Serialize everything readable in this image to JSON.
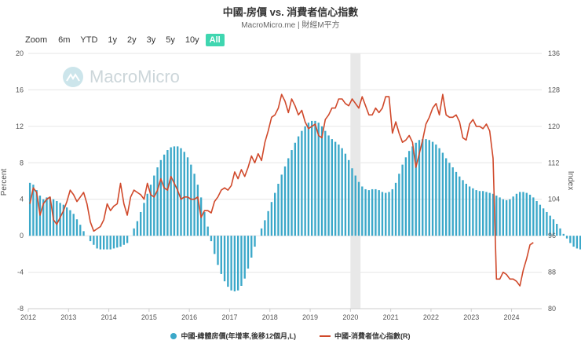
{
  "header": {
    "title": "中國-房價 vs. 消費者信心指數",
    "subtitle": "MacroMicro.me | 財經M平方"
  },
  "zoom": {
    "label": "Zoom",
    "options": [
      "6m",
      "YTD",
      "1y",
      "2y",
      "3y",
      "5y",
      "10y",
      "All"
    ],
    "active": "All"
  },
  "watermark": "MacroMicro",
  "colors": {
    "bar": "#3ba8c9",
    "line": "#d0492b",
    "shade": "#e8e8e8",
    "grid": "#e6e6e6",
    "active_zoom": "#3fd6b0"
  },
  "legend": {
    "bar_label": "中國-緯體房價(年增率,後移12個月,L)",
    "line_label": "中國-消費者信心指數(R)"
  },
  "chart_data": {
    "type": "bar+line",
    "title": "中國-房價 vs. 消費者信心指數",
    "left_axis": {
      "label": "Percent",
      "range": [
        -8,
        20
      ],
      "ticks": [
        "20",
        "16",
        "12",
        "8",
        "4",
        "0",
        "-4",
        "-8"
      ]
    },
    "right_axis": {
      "label": "Index",
      "range": [
        80,
        136
      ],
      "ticks": [
        "136",
        "128",
        "120",
        "112",
        "104",
        "96",
        "88",
        "80"
      ]
    },
    "x_ticks": [
      "2012",
      "2013",
      "2014",
      "2015",
      "2016",
      "2017",
      "2018",
      "2019",
      "2020",
      "2021",
      "2022",
      "2023",
      "2024"
    ],
    "x_start_year": 2012,
    "shaded_period": [
      "2020-01",
      "2020-03"
    ],
    "series": [
      {
        "name": "中國-緯體房價(年增率,後移12個月,L)",
        "type": "bar",
        "axis": "left",
        "start": "2012-01",
        "values": [
          5.8,
          5.6,
          5.0,
          4.4,
          4.0,
          4.2,
          4.2,
          4.0,
          3.8,
          3.6,
          3.4,
          3.1,
          2.8,
          2.4,
          1.8,
          1.2,
          0.5,
          0.0,
          -0.6,
          -1.0,
          -1.4,
          -1.5,
          -1.5,
          -1.5,
          -1.5,
          -1.4,
          -1.3,
          -1.2,
          -1.0,
          -0.8,
          0.0,
          0.8,
          1.6,
          2.6,
          3.6,
          4.6,
          5.6,
          6.6,
          7.5,
          8.3,
          8.9,
          9.4,
          9.7,
          9.8,
          9.8,
          9.6,
          9.2,
          8.6,
          7.8,
          6.8,
          5.6,
          4.2,
          2.6,
          1.0,
          -0.6,
          -2.0,
          -3.2,
          -4.2,
          -5.0,
          -5.6,
          -6.0,
          -6.1,
          -6.0,
          -5.5,
          -4.7,
          -3.6,
          -2.4,
          -1.2,
          0.0,
          0.8,
          1.7,
          2.7,
          3.7,
          4.7,
          5.7,
          6.7,
          7.6,
          8.5,
          9.4,
          10.2,
          10.9,
          11.5,
          12.0,
          12.4,
          12.6,
          12.6,
          12.4,
          12.0,
          11.5,
          11.0,
          10.6,
          10.3,
          10.0,
          9.6,
          9.0,
          8.3,
          7.4,
          6.6,
          5.9,
          5.4,
          5.1,
          5.0,
          5.1,
          5.1,
          5.0,
          4.8,
          4.7,
          4.8,
          5.1,
          5.8,
          6.8,
          7.8,
          8.6,
          9.3,
          9.8,
          10.2,
          10.5,
          10.6,
          10.6,
          10.5,
          10.3,
          10.0,
          9.6,
          9.1,
          8.5,
          8.0,
          7.5,
          7.0,
          6.5,
          6.1,
          5.7,
          5.4,
          5.2,
          5.0,
          4.9,
          4.9,
          4.8,
          4.7,
          4.6,
          4.4,
          4.2,
          4.0,
          3.9,
          4.0,
          4.3,
          4.6,
          4.8,
          4.8,
          4.7,
          4.5,
          4.2,
          3.8,
          3.4,
          3.0,
          2.6,
          2.2,
          1.8,
          1.3,
          0.8,
          0.2,
          -0.3,
          -0.8,
          -1.2,
          -1.4,
          -1.5,
          -1.6,
          -1.6,
          -1.5,
          -1.3,
          -1.0,
          -0.7,
          -0.4,
          -0.2,
          -0.1
        ]
      },
      {
        "name": "中國-消費者信心指數(R)",
        "type": "line",
        "axis": "right",
        "start": "2012-01",
        "values": [
          103.0,
          106.5,
          105.5,
          100.5,
          103.0,
          104.0,
          104.5,
          99.5,
          98.5,
          100.0,
          101.5,
          103.5,
          106.0,
          105.0,
          103.5,
          104.5,
          105.5,
          103.0,
          99.0,
          97.0,
          97.5,
          98.0,
          99.5,
          103.0,
          101.5,
          102.5,
          103.0,
          107.5,
          103.0,
          100.5,
          104.5,
          106.0,
          105.5,
          105.0,
          104.0,
          107.5,
          105.0,
          104.5,
          106.0,
          108.5,
          106.5,
          106.0,
          109.0,
          107.5,
          106.0,
          104.0,
          104.5,
          104.5,
          104.0,
          104.0,
          104.5,
          100.0,
          101.5,
          101.5,
          101.0,
          103.5,
          104.5,
          106.0,
          106.5,
          106.0,
          107.0,
          110.0,
          108.5,
          110.5,
          109.0,
          111.0,
          113.5,
          112.0,
          114.0,
          112.5,
          116.5,
          119.0,
          122.0,
          122.5,
          124.0,
          127.0,
          125.5,
          123.0,
          126.0,
          124.5,
          122.5,
          123.5,
          121.0,
          119.5,
          120.0,
          120.5,
          118.0,
          117.5,
          121.5,
          122.5,
          124.0,
          124.0,
          126.0,
          126.0,
          125.0,
          124.5,
          126.0,
          125.0,
          124.0,
          126.5,
          124.5,
          122.5,
          122.5,
          124.0,
          123.0,
          124.0,
          126.5,
          126.5,
          118.5,
          121.0,
          118.5,
          116.5,
          117.0,
          118.0,
          116.5,
          111.0,
          114.0,
          117.0,
          120.5,
          122.0,
          124.0,
          125.0,
          122.5,
          127.0,
          122.5,
          122.0,
          122.0,
          122.5,
          121.0,
          117.5,
          117.0,
          120.5,
          121.5,
          120.0,
          120.0,
          119.5,
          120.5,
          119.0,
          113.0,
          86.5,
          86.5,
          88.0,
          87.5,
          86.5,
          86.5,
          86.0,
          85.0,
          88.5,
          91.0,
          94.0,
          94.5
        ]
      }
    ]
  }
}
